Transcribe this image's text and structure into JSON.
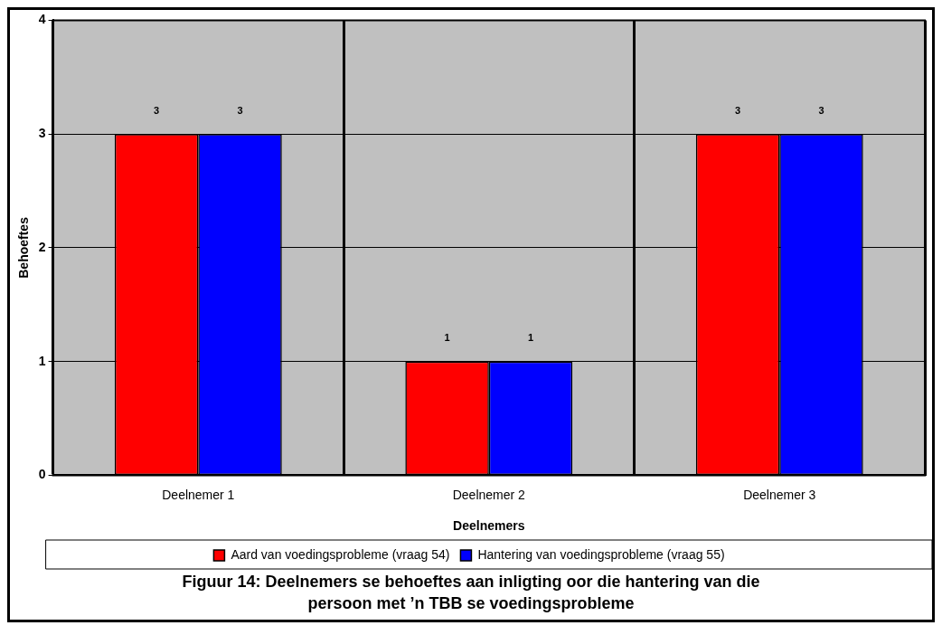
{
  "chart_data": {
    "type": "bar",
    "title": "Figuur 14:  Deelnemers se behoeftes aan inligting oor die hantering van die persoon met ’n TBB se voedingsprobleme",
    "xlabel": "Deelnemers",
    "ylabel": "Behoeftes",
    "categories": [
      "Deelnemer 1",
      "Deelnemer 2",
      "Deelnemer 3"
    ],
    "series": [
      {
        "name": "Aard van voedingsprobleme (vraag 54)",
        "color": "#ff0000",
        "values": [
          3,
          1,
          3
        ]
      },
      {
        "name": "Hantering van voedingsprobleme (vraag 55)",
        "color": "#0000ff",
        "values": [
          3,
          1,
          3
        ]
      }
    ],
    "ylim": [
      0,
      4
    ],
    "yticks": [
      0,
      1,
      2,
      3,
      4
    ],
    "grid": true,
    "legend": "bottom",
    "data_labels": true
  }
}
